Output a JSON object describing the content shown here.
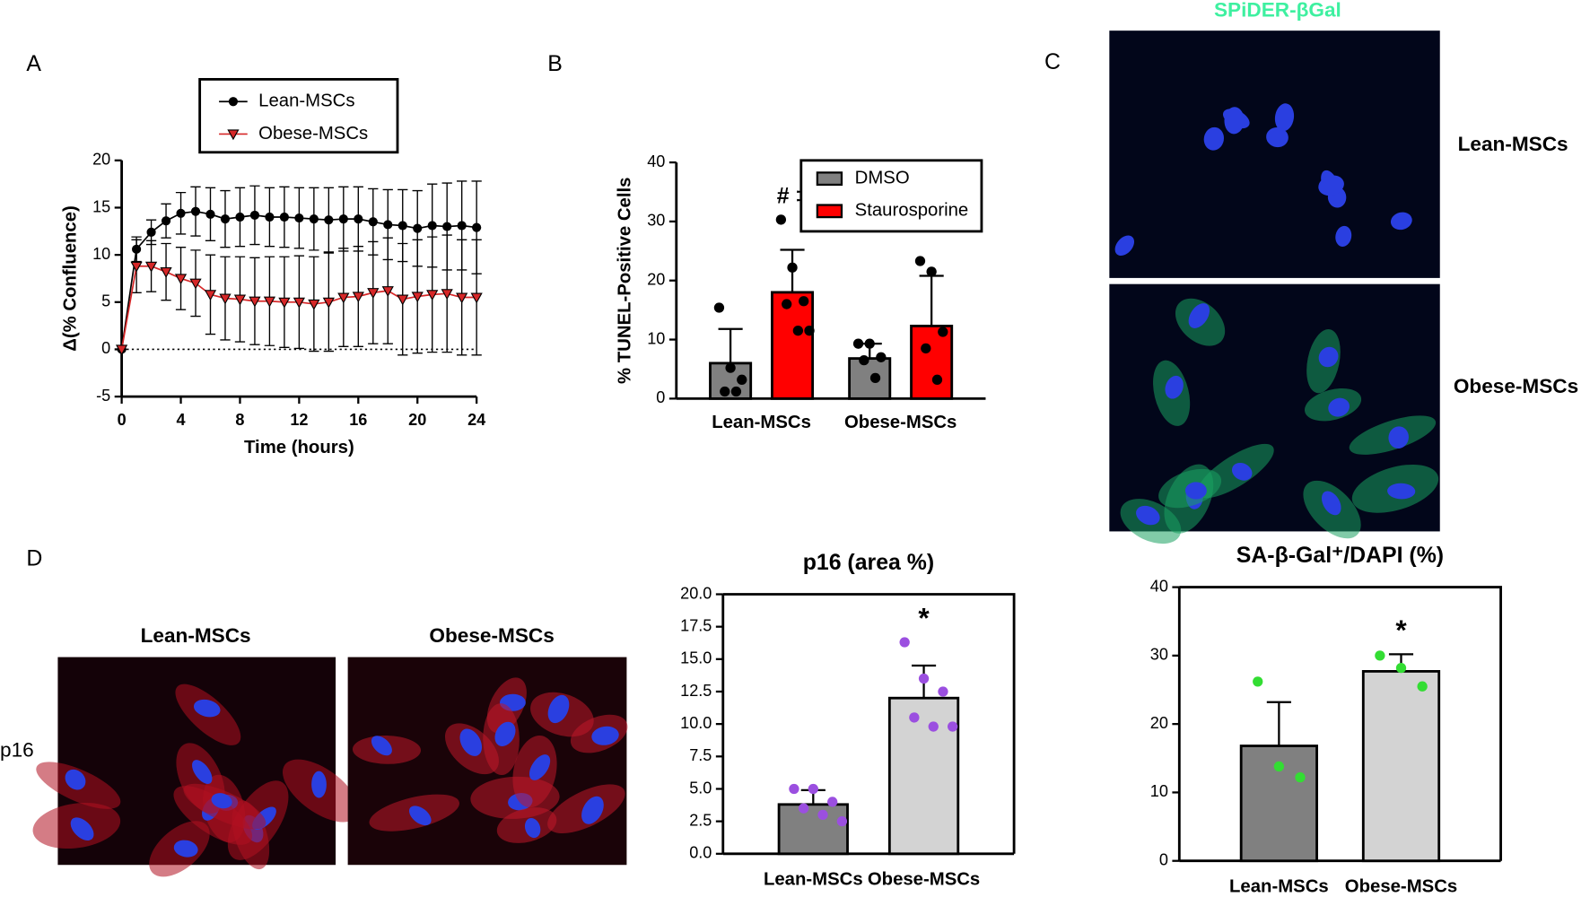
{
  "panel_labels": [
    "A",
    "B",
    "C",
    "D"
  ],
  "spider_images": {
    "title": "SPiDER-βGal",
    "rows": [
      "Lean-MSCs",
      "Obese-MSCs"
    ]
  },
  "p16_images": {
    "columns": [
      "Lean-MSCs",
      "Obese-MSCs"
    ],
    "row": "p16"
  },
  "chart_data": [
    {
      "type": "line",
      "xlabel": "Time (hours)",
      "ylabel": "Δ(% Confluence)",
      "x": [
        0,
        1,
        2,
        3,
        4,
        5,
        6,
        7,
        8,
        9,
        10,
        11,
        12,
        13,
        14,
        15,
        16,
        17,
        18,
        19,
        20,
        21,
        22,
        23,
        24
      ],
      "xlim": [
        0,
        24
      ],
      "xticks": [
        0,
        4,
        8,
        12,
        16,
        20,
        24
      ],
      "ylim": [
        -5,
        20
      ],
      "yticks": [
        -5,
        0,
        5,
        10,
        15,
        20
      ],
      "series": [
        {
          "name": "Lean-MSCs",
          "color": "#000000",
          "marker": "circle",
          "values": [
            0,
            10.6,
            12.4,
            13.6,
            14.4,
            14.6,
            14.3,
            13.8,
            14.0,
            14.2,
            14.0,
            14.0,
            13.9,
            13.8,
            13.7,
            13.8,
            13.8,
            13.5,
            13.2,
            13.1,
            12.8,
            13.1,
            13.0,
            13.1,
            12.9
          ],
          "errors": [
            0,
            1.3,
            1.3,
            1.8,
            2.2,
            2.6,
            2.8,
            3.0,
            3.1,
            3.1,
            3.1,
            3.2,
            3.2,
            3.3,
            3.4,
            3.4,
            3.4,
            3.5,
            3.7,
            3.8,
            4.0,
            4.4,
            4.6,
            4.7,
            4.9
          ]
        },
        {
          "name": "Obese-MSCs",
          "color": "#d62728",
          "marker": "triangle-down",
          "values": [
            0,
            8.8,
            8.8,
            8.2,
            7.5,
            7.0,
            5.8,
            5.4,
            5.3,
            5.1,
            5.1,
            5.0,
            5.0,
            4.8,
            5.0,
            5.5,
            5.6,
            6.0,
            6.2,
            5.3,
            5.6,
            5.8,
            5.9,
            5.5,
            5.5
          ],
          "errors": [
            0,
            2.8,
            2.7,
            3.0,
            3.3,
            3.5,
            4.2,
            4.4,
            4.5,
            4.6,
            4.7,
            4.8,
            4.9,
            5.0,
            5.2,
            5.2,
            5.3,
            5.4,
            5.6,
            5.9,
            6.0,
            6.1,
            6.2,
            6.1,
            6.1
          ]
        }
      ]
    },
    {
      "type": "bar",
      "ylabel": "% TUNEL-Positive Cells",
      "annotation": "# ‡",
      "categories": [
        "Lean-MSCs",
        "Obese-MSCs"
      ],
      "ylim": [
        0,
        40
      ],
      "yticks": [
        0,
        10,
        20,
        30,
        40
      ],
      "series": [
        {
          "name": "DMSO",
          "color": "#808080",
          "point_color": "#000000",
          "values": [
            6.0,
            6.8
          ],
          "errors": [
            5.8,
            2.5
          ],
          "points": [
            [
              15.4,
              5.2,
              3.2,
              1.2,
              1.2
            ],
            [
              9.3,
              9.3,
              7.0,
              6.5,
              3.5
            ]
          ]
        },
        {
          "name": "Staurosporine",
          "color": "#ff0000",
          "point_color": "#000000",
          "values": [
            18.0,
            12.3
          ],
          "errors": [
            7.2,
            8.5
          ],
          "points": [
            [
              30.3,
              22.2,
              16.5,
              16.0,
              11.5,
              11.5
            ],
            [
              23.3,
              21.5,
              11.3,
              8.5,
              3.2
            ]
          ]
        }
      ]
    },
    {
      "type": "bar",
      "title": "p16 (area %)",
      "annotation": "*",
      "categories": [
        "Lean-MSCs",
        "Obese-MSCs"
      ],
      "ylim": [
        0,
        20
      ],
      "yticks": [
        {
          "value": 0,
          "label": "0.0"
        },
        2.5,
        {
          "value": 5,
          "label": "5.0"
        },
        7.5,
        {
          "value": 10,
          "label": "10.0"
        },
        12.5,
        {
          "value": 15,
          "label": "15.0"
        },
        17.5,
        {
          "value": 20,
          "label": "20.0"
        }
      ],
      "series": [
        {
          "colors": [
            "#808080",
            "#d3d3d3"
          ],
          "point_color": "#9b4fe0",
          "values": [
            3.8,
            12.0
          ],
          "errors": [
            1.1,
            2.5
          ],
          "points": [
            [
              5.0,
              5.0,
              4.0,
              3.5,
              3.0,
              2.5
            ],
            [
              16.3,
              13.5,
              12.5,
              10.5,
              9.8,
              9.8
            ]
          ]
        }
      ]
    },
    {
      "type": "bar",
      "title": "SA-β-Gal⁺/DAPI (%)",
      "annotation": "*",
      "categories": [
        "Lean-MSCs",
        "Obese-MSCs"
      ],
      "ylim": [
        0,
        40
      ],
      "yticks": [
        0,
        10,
        20,
        30,
        40
      ],
      "series": [
        {
          "colors": [
            "#808080",
            "#d3d3d3"
          ],
          "point_color": "#33dd33",
          "values": [
            16.8,
            27.7
          ],
          "errors": [
            6.4,
            2.5
          ],
          "points": [
            [
              26.2,
              13.8,
              12.2
            ],
            [
              30.0,
              28.2,
              25.5
            ]
          ]
        }
      ]
    }
  ]
}
